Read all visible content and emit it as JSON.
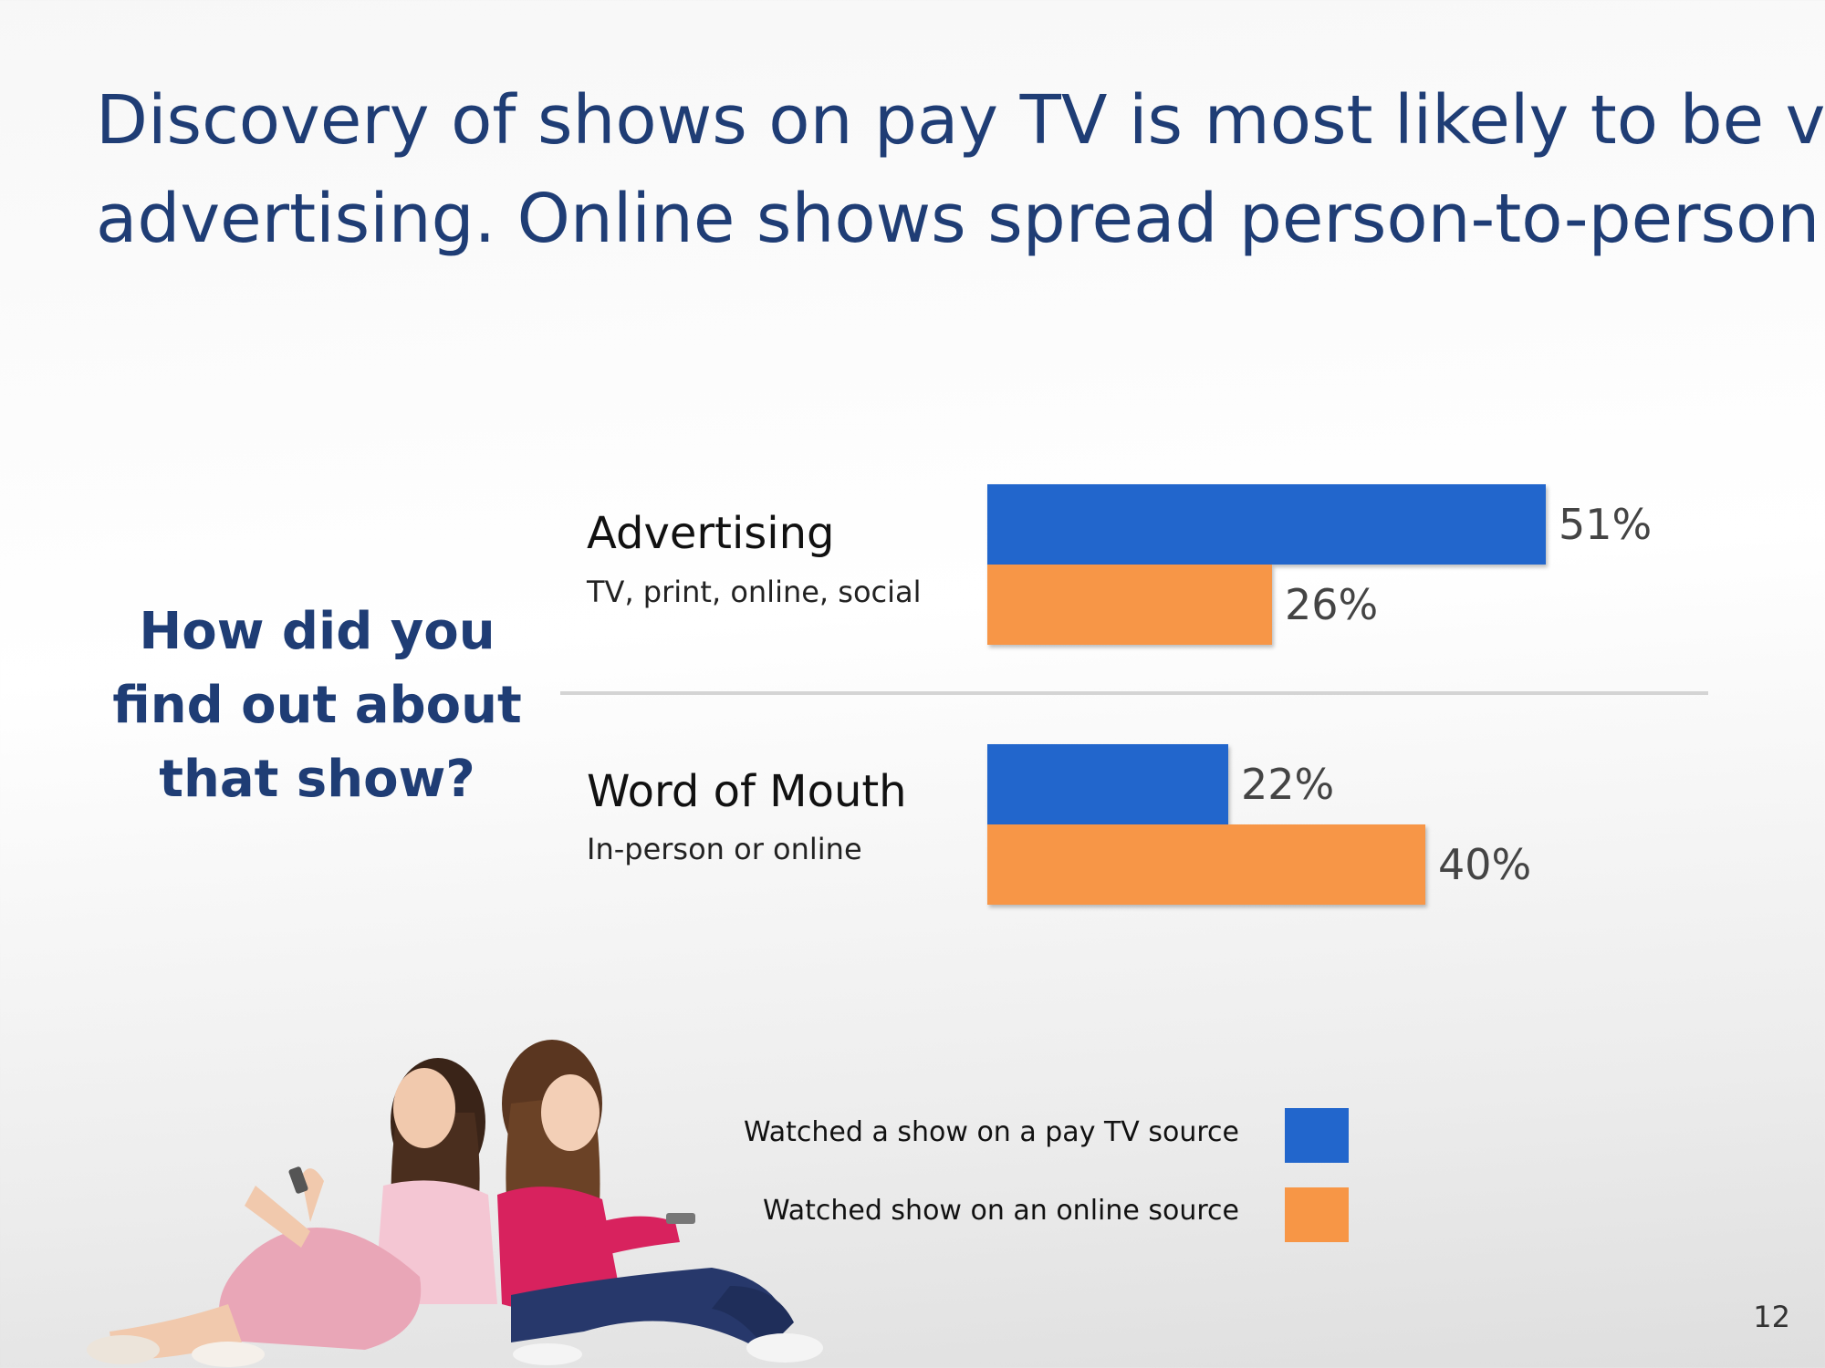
{
  "title": {
    "line1": "Discovery of shows on pay TV is most likely to be via",
    "line2": "advertising.  Online shows spread person-to-person"
  },
  "question": {
    "line1": "How did you",
    "line2": "find out about",
    "line3": "that show?"
  },
  "chart_data": {
    "type": "bar",
    "orientation": "horizontal",
    "categories": [
      "Advertising",
      "Word of Mouth"
    ],
    "category_subtitles": [
      "TV, print, online, social",
      "In-person or online"
    ],
    "series": [
      {
        "name": "Watched a show on a pay TV source",
        "values": [
          51,
          22
        ],
        "labels": [
          "51%",
          "22%"
        ],
        "color": "#2266cc"
      },
      {
        "name": "Watched show on an online source",
        "values": [
          26,
          40
        ],
        "labels": [
          "26%",
          "40%"
        ],
        "color": "#f79646"
      }
    ],
    "unit": "%",
    "grid": false,
    "legend_position": "bottom-center"
  },
  "page_number": "12",
  "colors": {
    "title": "#1f3d75",
    "divider": "#d4d4d4"
  }
}
